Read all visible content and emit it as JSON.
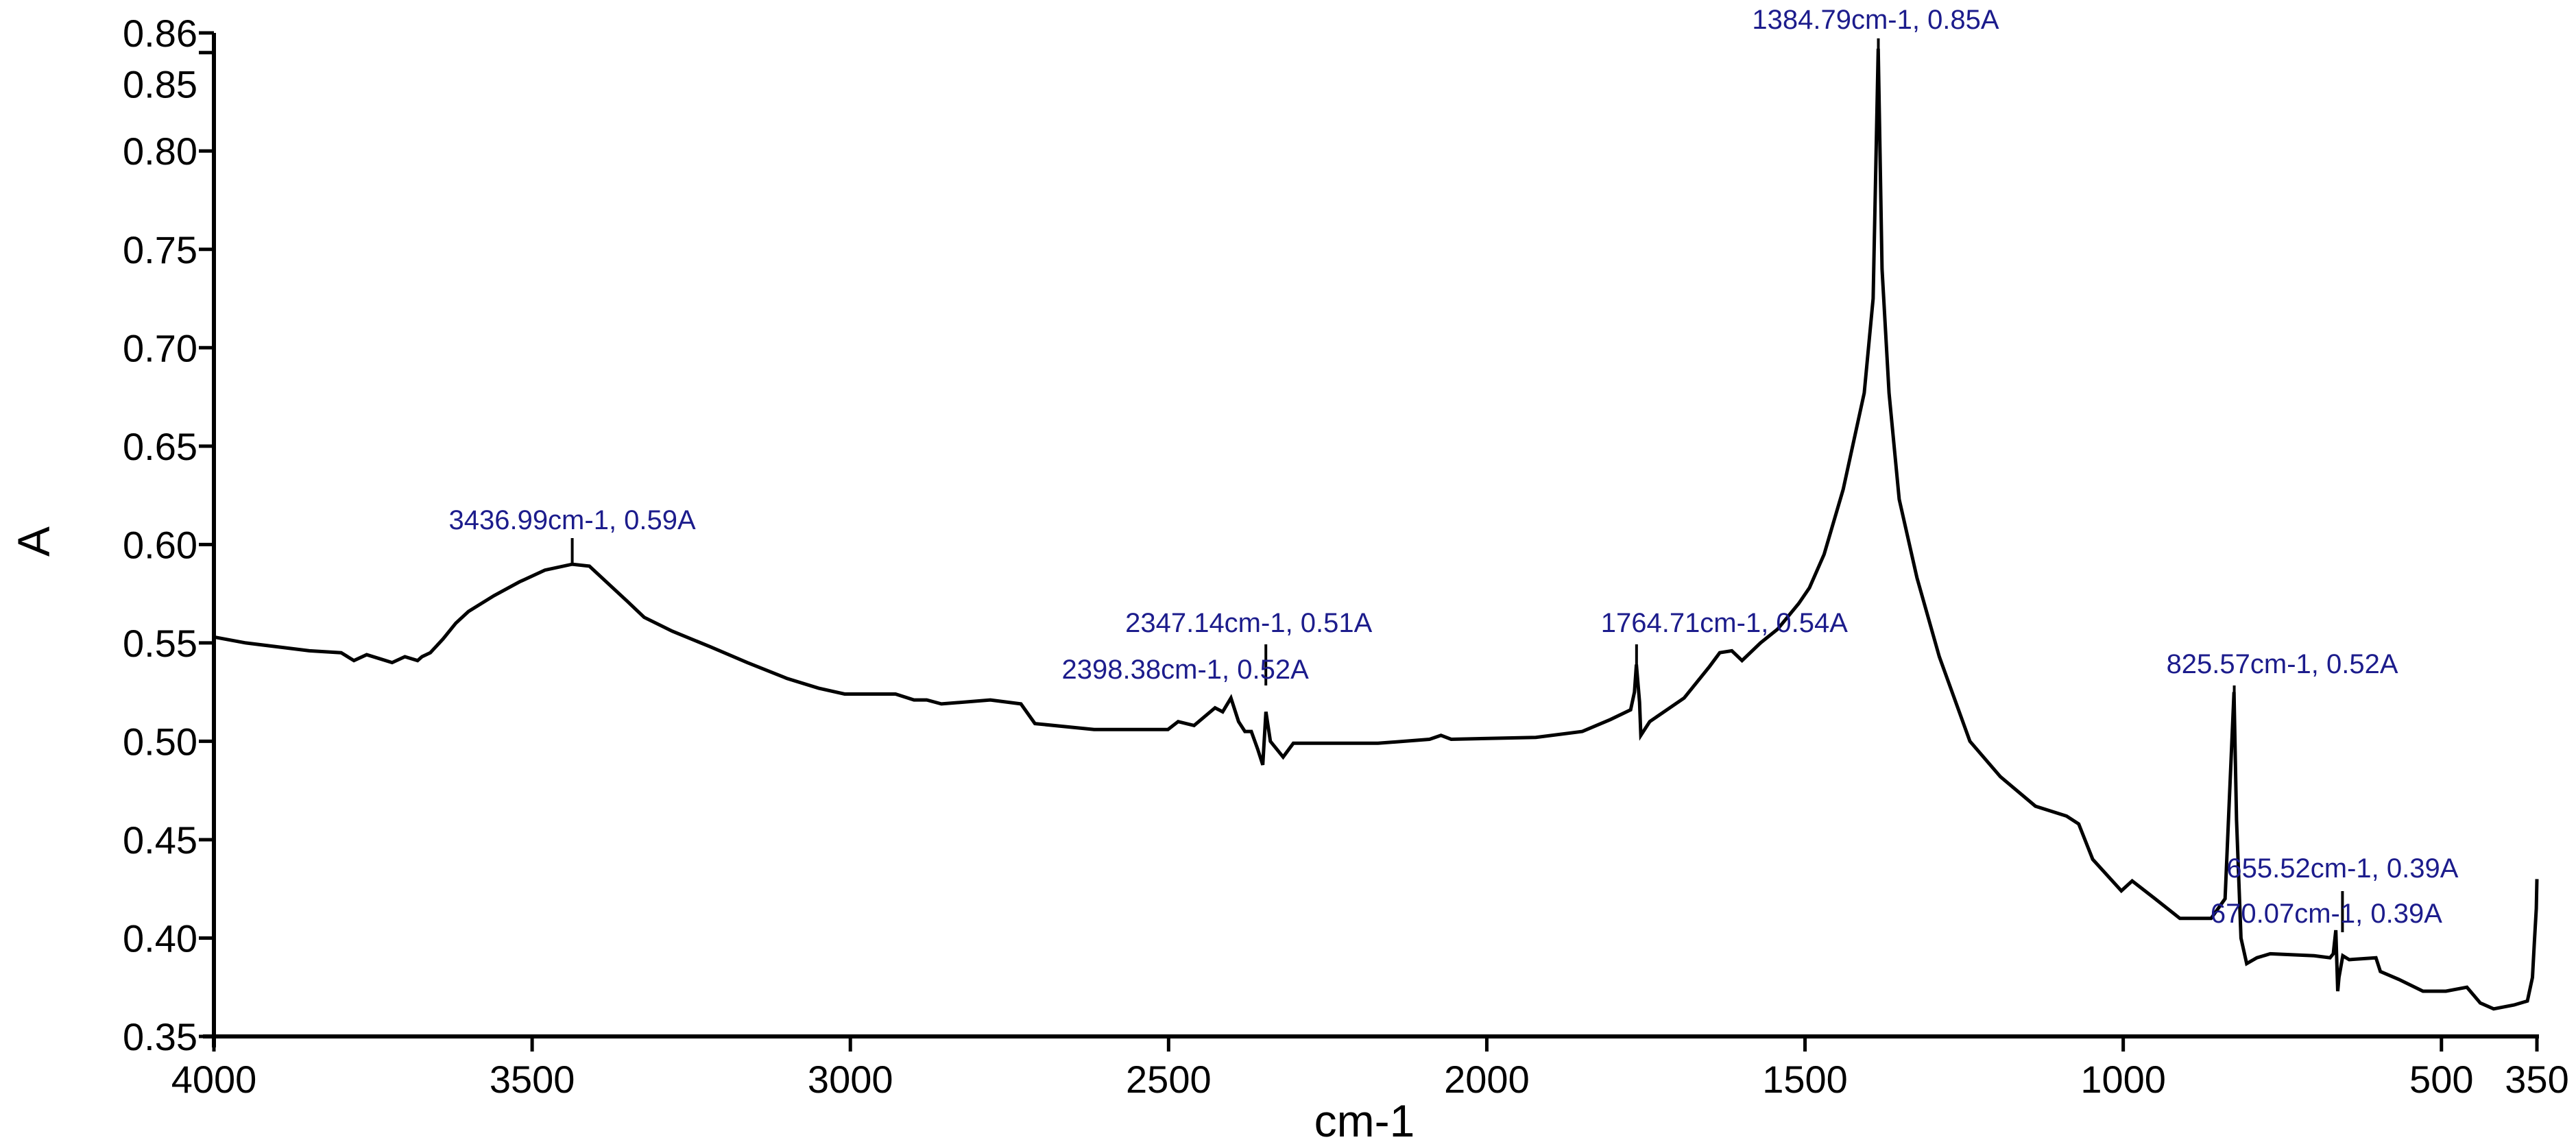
{
  "chart_data": {
    "type": "line",
    "title": "",
    "xlabel": "cm-1",
    "ylabel": "A",
    "xlim": [
      4000,
      350
    ],
    "ylim": [
      0.35,
      0.86
    ],
    "x_reversed": true,
    "grid": false,
    "x_ticks": [
      "4000",
      "3500",
      "3000",
      "2500",
      "2000",
      "1500",
      "1000",
      "500",
      "350"
    ],
    "y_ticks": [
      "0.35",
      "0.40",
      "0.45",
      "0.50",
      "0.55",
      "0.60",
      "0.65",
      "0.70",
      "0.75",
      "0.80",
      "0.85",
      "0.86"
    ],
    "line_color": "#000000",
    "annotation_color": "#1c1c8c",
    "series": [
      {
        "x": [
          4000,
          3950,
          3900,
          3850,
          3800,
          3780,
          3760,
          3740,
          3720,
          3700,
          3680,
          3673,
          3660,
          3640,
          3620,
          3600,
          3560,
          3520,
          3480,
          3437,
          3410,
          3380,
          3350,
          3324,
          3280,
          3220,
          3162,
          3100,
          3050,
          3009,
          2929,
          2900,
          2880,
          2857,
          2780,
          2732,
          2710,
          2617,
          2501,
          2485,
          2460,
          2427,
          2415,
          2402,
          2390,
          2380,
          2370,
          2360,
          2352,
          2347,
          2340,
          2330,
          2320,
          2304,
          2171,
          2090,
          2072,
          2056,
          1923,
          1850,
          1806,
          1774,
          1768,
          1765,
          1760,
          1758,
          1744,
          1690,
          1650,
          1634,
          1615,
          1599,
          1570,
          1543,
          1510,
          1493,
          1470,
          1440,
          1407,
          1393,
          1385,
          1379,
          1368,
          1352,
          1324,
          1289,
          1241,
          1193,
          1138,
          1089,
          1070,
          1048,
          1003,
          986,
          950,
          911,
          862,
          840,
          832,
          826,
          822,
          815,
          806,
          790,
          769,
          700,
          675,
          670,
          666,
          663,
          661,
          655,
          645,
          603,
          596,
          567,
          529,
          493,
          460,
          439,
          418,
          386,
          365,
          357,
          354,
          351,
          350
        ],
        "y": [
          0.553,
          0.55,
          0.548,
          0.546,
          0.545,
          0.541,
          0.544,
          0.542,
          0.54,
          0.543,
          0.541,
          0.543,
          0.545,
          0.552,
          0.56,
          0.566,
          0.574,
          0.581,
          0.587,
          0.59,
          0.589,
          0.58,
          0.571,
          0.563,
          0.556,
          0.548,
          0.54,
          0.532,
          0.527,
          0.524,
          0.524,
          0.521,
          0.521,
          0.519,
          0.521,
          0.519,
          0.509,
          0.506,
          0.506,
          0.51,
          0.508,
          0.517,
          0.515,
          0.522,
          0.51,
          0.505,
          0.505,
          0.496,
          0.488,
          0.515,
          0.5,
          0.496,
          0.492,
          0.499,
          0.499,
          0.501,
          0.503,
          0.501,
          0.502,
          0.505,
          0.511,
          0.516,
          0.525,
          0.539,
          0.52,
          0.503,
          0.51,
          0.522,
          0.538,
          0.545,
          0.546,
          0.541,
          0.55,
          0.557,
          0.57,
          0.578,
          0.595,
          0.628,
          0.677,
          0.725,
          0.852,
          0.74,
          0.677,
          0.623,
          0.583,
          0.543,
          0.5,
          0.482,
          0.467,
          0.462,
          0.458,
          0.44,
          0.424,
          0.429,
          0.42,
          0.41,
          0.41,
          0.42,
          0.48,
          0.525,
          0.46,
          0.4,
          0.387,
          0.39,
          0.392,
          0.391,
          0.39,
          0.392,
          0.404,
          0.373,
          0.38,
          0.391,
          0.389,
          0.39,
          0.383,
          0.379,
          0.373,
          0.373,
          0.375,
          0.367,
          0.364,
          0.366,
          0.368,
          0.38,
          0.398,
          0.415,
          0.43
        ]
      }
    ],
    "annotations": [
      {
        "x": 3436.99,
        "y": 0.59,
        "label": "3436.99cm-1, 0.59A"
      },
      {
        "x": 2347.14,
        "y": 0.51,
        "label": "2347.14cm-1, 0.51A"
      },
      {
        "x": 2398.38,
        "y": 0.52,
        "label": "2398.38cm-1, 0.52A"
      },
      {
        "x": 1764.71,
        "y": 0.54,
        "label": "1764.71cm-1, 0.54A"
      },
      {
        "x": 1384.79,
        "y": 0.85,
        "label": "1384.79cm-1, 0.85A"
      },
      {
        "x": 825.57,
        "y": 0.52,
        "label": "825.57cm-1, 0.52A"
      },
      {
        "x": 655.52,
        "y": 0.39,
        "label": "655.52cm-1, 0.39A"
      },
      {
        "x": 670.07,
        "y": 0.39,
        "label": "670.07cm-1, 0.39A"
      }
    ]
  }
}
